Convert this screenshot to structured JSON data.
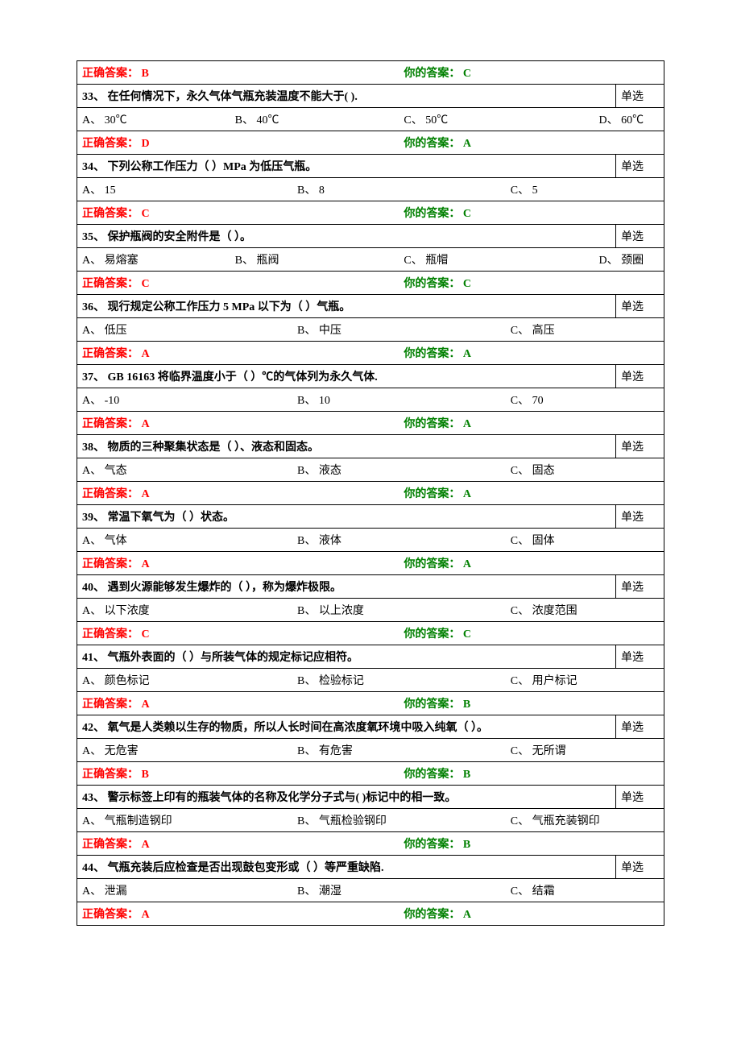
{
  "labels": {
    "correct": "正确答案：",
    "your": "你的答案：",
    "type_single": "单选"
  },
  "questions": [
    {
      "num": "",
      "text": "",
      "type": "",
      "correct": "B",
      "your": "C",
      "options": [],
      "only_answer": true
    },
    {
      "num": "33、",
      "text": "在任何情况下，永久气体气瓶充装温度不能大于( ).",
      "type": "单选",
      "correct": "D",
      "your": "A",
      "options": [
        {
          "k": "A、",
          "v": "30℃"
        },
        {
          "k": "B、",
          "v": "40℃"
        },
        {
          "k": "C、",
          "v": "50℃"
        },
        {
          "k": "D、",
          "v": "60℃"
        }
      ],
      "cols": 4
    },
    {
      "num": "34、",
      "text": "下列公称工作压力（ ）MPa 为低压气瓶。",
      "type": "单选",
      "correct": "C",
      "your": "C",
      "options": [
        {
          "k": "A、",
          "v": "15"
        },
        {
          "k": "B、",
          "v": "8"
        },
        {
          "k": "C、",
          "v": "5"
        }
      ],
      "cols": 3
    },
    {
      "num": "35、",
      "text": "保护瓶阀的安全附件是（ ）。",
      "type": "单选",
      "correct": "C",
      "your": "C",
      "options": [
        {
          "k": "A、",
          "v": "易熔塞"
        },
        {
          "k": "B、",
          "v": "瓶阀"
        },
        {
          "k": "C、",
          "v": "瓶帽"
        },
        {
          "k": "D、",
          "v": "颈圈"
        }
      ],
      "cols": 4
    },
    {
      "num": "36、",
      "text": "现行规定公称工作压力 5 MPa 以下为（ ）气瓶。",
      "type": "单选",
      "correct": "A",
      "your": "A",
      "options": [
        {
          "k": "A、",
          "v": "低压"
        },
        {
          "k": "B、",
          "v": "中压"
        },
        {
          "k": "C、",
          "v": "高压"
        }
      ],
      "cols": 3
    },
    {
      "num": "37、",
      "text": "GB 16163 将临界温度小于（ ）℃的气体列为永久气体.",
      "type": "单选",
      "correct": "A",
      "your": "A",
      "options": [
        {
          "k": "A、",
          "v": "-10"
        },
        {
          "k": "B、",
          "v": "10"
        },
        {
          "k": "C、",
          "v": "70"
        }
      ],
      "cols": 3
    },
    {
      "num": "38、",
      "text": "物质的三种聚集状态是（ ）、液态和固态。",
      "type": "单选",
      "correct": "A",
      "your": "A",
      "options": [
        {
          "k": "A、",
          "v": "气态"
        },
        {
          "k": "B、",
          "v": "液态"
        },
        {
          "k": "C、",
          "v": "固态"
        }
      ],
      "cols": 3
    },
    {
      "num": "39、",
      "text": "常温下氧气为（ ）状态。",
      "type": "单选",
      "correct": "A",
      "your": "A",
      "options": [
        {
          "k": "A、",
          "v": "气体"
        },
        {
          "k": "B、",
          "v": "液体"
        },
        {
          "k": "C、",
          "v": "固体"
        }
      ],
      "cols": 3
    },
    {
      "num": "40、",
      "text": "遇到火源能够发生爆炸的（ ），称为爆炸极限。",
      "type": "单选",
      "correct": "C",
      "your": "C",
      "options": [
        {
          "k": "A、",
          "v": "以下浓度"
        },
        {
          "k": "B、",
          "v": "以上浓度"
        },
        {
          "k": "C、",
          "v": "浓度范围"
        }
      ],
      "cols": 3
    },
    {
      "num": "41、",
      "text": "气瓶外表面的（ ）与所装气体的规定标记应相符。",
      "type": "单选",
      "correct": "A",
      "your": "B",
      "options": [
        {
          "k": "A、",
          "v": "颜色标记"
        },
        {
          "k": "B、",
          "v": "检验标记"
        },
        {
          "k": "C、",
          "v": "用户标记"
        }
      ],
      "cols": 3
    },
    {
      "num": "42、",
      "text": "氧气是人类赖以生存的物质，所以人长时间在高浓度氧环境中吸入纯氧（ ）。",
      "type": "单选",
      "correct": "B",
      "your": "B",
      "options": [
        {
          "k": "A、",
          "v": "无危害"
        },
        {
          "k": "B、",
          "v": "有危害"
        },
        {
          "k": "C、",
          "v": "无所谓"
        }
      ],
      "cols": 3
    },
    {
      "num": "43、",
      "text": "警示标签上印有的瓶装气体的名称及化学分子式与( )标记中的相一致。",
      "type": "单选",
      "correct": "A",
      "your": "B",
      "options": [
        {
          "k": "A、",
          "v": "气瓶制造钢印"
        },
        {
          "k": "B、",
          "v": "气瓶检验钢印"
        },
        {
          "k": "C、",
          "v": "气瓶充装钢印"
        }
      ],
      "cols": 3
    },
    {
      "num": "44、",
      "text": "气瓶充装后应检查是否出现鼓包变形或（ ）等严重缺陷.",
      "type": "单选",
      "correct": "A",
      "your": "A",
      "options": [
        {
          "k": "A、",
          "v": "泄漏"
        },
        {
          "k": "B、",
          "v": "潮湿"
        },
        {
          "k": "C、",
          "v": "结霜"
        }
      ],
      "cols": 3
    }
  ]
}
